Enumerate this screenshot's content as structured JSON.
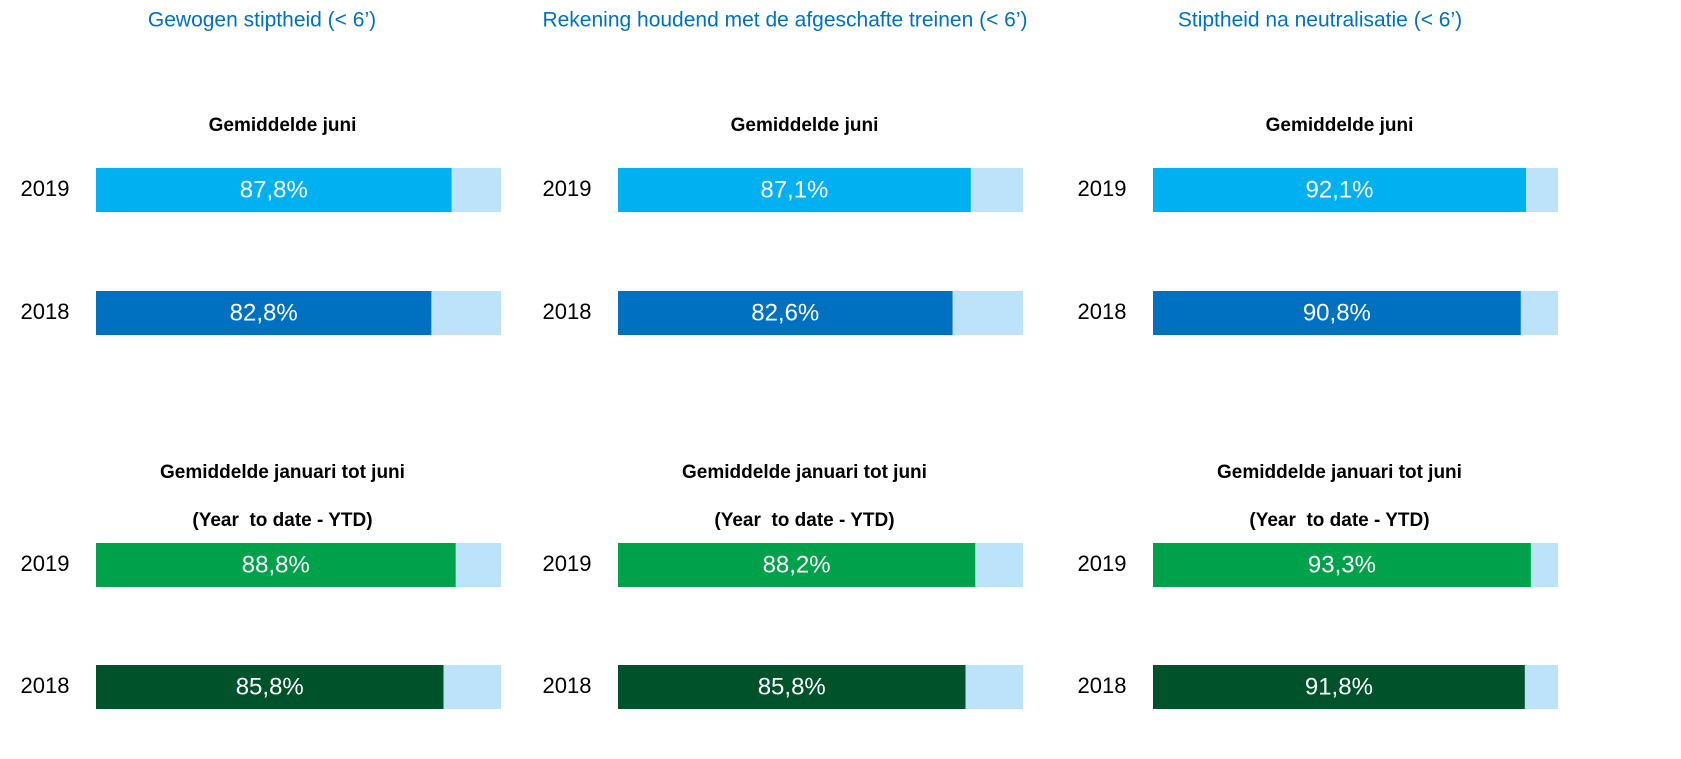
{
  "columns": [
    "Gewogen stiptheid (< 6’)",
    "Rekening houdend met de afgeschafte treinen (< 6’)",
    "Stiptheid na neutralisatie (< 6’)"
  ],
  "chart_data": [
    {
      "type": "bar",
      "title": "Gemiddelde juni",
      "categories": [
        "2019",
        "2018"
      ],
      "values": [
        87.8,
        82.8
      ],
      "value_labels": [
        "87,8%",
        "82,8%"
      ],
      "colors": [
        "#00b0f0",
        "#0070c0"
      ],
      "track_color": "#bde3fb",
      "xlim": [
        0,
        100
      ]
    },
    {
      "type": "bar",
      "title": "Gemiddelde juni",
      "categories": [
        "2019",
        "2018"
      ],
      "values": [
        87.1,
        82.6
      ],
      "value_labels": [
        "87,1%",
        "82,6%"
      ],
      "colors": [
        "#00b0f0",
        "#0070c0"
      ],
      "track_color": "#bde3fb",
      "xlim": [
        0,
        100
      ]
    },
    {
      "type": "bar",
      "title": "Gemiddelde juni",
      "categories": [
        "2019",
        "2018"
      ],
      "values": [
        92.1,
        90.8
      ],
      "value_labels": [
        "92,1%",
        "90,8%"
      ],
      "colors": [
        "#00b0f0",
        "#0070c0"
      ],
      "track_color": "#bde3fb",
      "xlim": [
        0,
        100
      ]
    },
    {
      "type": "bar",
      "title": "Gemiddelde januari tot juni",
      "subtitle": "(Year  to date - YTD)",
      "categories": [
        "2019",
        "2018"
      ],
      "values": [
        88.8,
        85.8
      ],
      "value_labels": [
        "88,8%",
        "85,8%"
      ],
      "colors": [
        "#00a14b",
        "#00522a"
      ],
      "track_color": "#bde3fb",
      "xlim": [
        0,
        100
      ]
    },
    {
      "type": "bar",
      "title": "Gemiddelde januari tot juni",
      "subtitle": "(Year  to date - YTD)",
      "categories": [
        "2019",
        "2018"
      ],
      "values": [
        88.2,
        85.8
      ],
      "value_labels": [
        "88,2%",
        "85,8%"
      ],
      "colors": [
        "#00a14b",
        "#00522a"
      ],
      "track_color": "#bde3fb",
      "xlim": [
        0,
        100
      ]
    },
    {
      "type": "bar",
      "title": "Gemiddelde januari tot juni",
      "subtitle": "(Year  to date - YTD)",
      "categories": [
        "2019",
        "2018"
      ],
      "values": [
        93.3,
        91.8
      ],
      "value_labels": [
        "93,3%",
        "91,8%"
      ],
      "colors": [
        "#00a14b",
        "#00522a"
      ],
      "track_color": "#bde3fb",
      "xlim": [
        0,
        100
      ]
    }
  ]
}
